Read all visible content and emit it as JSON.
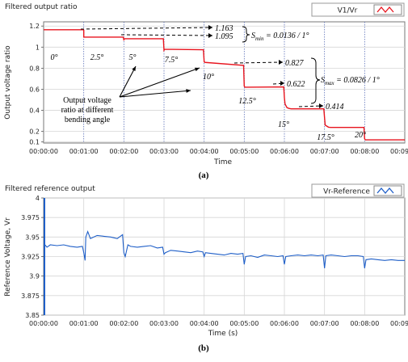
{
  "chart_data": [
    {
      "type": "line",
      "panel_title": "Filtered output ratio",
      "title": "",
      "xlabel": "Time",
      "ylabel": "Output voltage ratio",
      "x_ticks": [
        "00:00:00",
        "00:01:00",
        "00:02:00",
        "00:03:00",
        "00:04:00",
        "00:05:00",
        "00:06:00",
        "00:07:00",
        "00:08:00",
        "00:09:00"
      ],
      "y_ticks": [
        "0.1",
        "0.2",
        "0.4",
        "0.6",
        "0.8",
        "1",
        "1.2"
      ],
      "xlim_seconds": [
        0,
        540
      ],
      "ylim": [
        0.09,
        1.24
      ],
      "grid": true,
      "legend": {
        "label": "V1/Vr",
        "position": "top-right"
      },
      "series": [
        {
          "name": "V1/Vr",
          "color": "#e8141e",
          "x": [
            0,
            59,
            60,
            60,
            119,
            120,
            121,
            179,
            180,
            181,
            239,
            240,
            241,
            299,
            300,
            301,
            359,
            360,
            361,
            364,
            367,
            370,
            419,
            420,
            421,
            426,
            429,
            479,
            480,
            481,
            540
          ],
          "y": [
            1.165,
            1.165,
            1.16,
            1.095,
            1.095,
            1.07,
            1.08,
            1.08,
            0.97,
            0.98,
            0.975,
            0.86,
            0.855,
            0.827,
            0.63,
            0.62,
            0.622,
            0.52,
            0.46,
            0.425,
            0.418,
            0.414,
            0.414,
            0.33,
            0.26,
            0.24,
            0.238,
            0.238,
            0.13,
            0.12,
            0.12
          ]
        }
      ],
      "annotations": {
        "angles": [
          "0°",
          "2.5°",
          "5°",
          "7.5°",
          "10°",
          "12.5°",
          "15°",
          "17.5°",
          "20°"
        ],
        "values": [
          "1.163",
          "1.095",
          "0.827",
          "0.622",
          "0.414"
        ],
        "s_min": "S",
        "s_min_sub": "min",
        "s_min_value": " = 0.0136 / 1°",
        "s_max": "S",
        "s_max_sub": "max",
        "s_max_value": " = 0.0826 / 1°",
        "note_lines": [
          "Output voltage",
          "ratio at different",
          "bending angle"
        ]
      },
      "caption": "(a)"
    },
    {
      "type": "line",
      "panel_title": "Filtered reference output",
      "title": "",
      "xlabel": "Time (s)",
      "ylabel": "Reference Voltage, Vr",
      "x_ticks": [
        "00:00:00",
        "00:01:00",
        "00:02:00",
        "00:03:00",
        "00:04:00",
        "00:05:00",
        "00:06:00",
        "00:07:00",
        "00:08:00",
        "00:09:00"
      ],
      "y_ticks": [
        "3.85",
        "3.875",
        "3.9",
        "3.925",
        "3.95",
        "3.975",
        "4"
      ],
      "xlim_seconds": [
        0,
        540
      ],
      "ylim": [
        3.85,
        4.0
      ],
      "grid": true,
      "legend": {
        "label": "Vr-Reference",
        "position": "top-right"
      },
      "series": [
        {
          "name": "Vr-Reference",
          "color": "#1f5fc8",
          "x": [
            0,
            2,
            5,
            10,
            20,
            30,
            40,
            50,
            58,
            60,
            62,
            63,
            66,
            70,
            80,
            90,
            100,
            110,
            118,
            120,
            122,
            126,
            130,
            140,
            150,
            160,
            170,
            178,
            180,
            182,
            190,
            200,
            210,
            220,
            230,
            238,
            240,
            242,
            250,
            260,
            270,
            280,
            290,
            298,
            300,
            302,
            310,
            320,
            330,
            340,
            350,
            358,
            360,
            362,
            370,
            380,
            390,
            400,
            410,
            418,
            420,
            422,
            430,
            440,
            450,
            460,
            470,
            478,
            480,
            482,
            490,
            500,
            510,
            520,
            530,
            540
          ],
          "y": [
            3.94,
            3.94,
            3.937,
            3.94,
            3.939,
            3.94,
            3.938,
            3.937,
            3.938,
            3.93,
            3.92,
            3.95,
            3.957,
            3.948,
            3.952,
            3.951,
            3.95,
            3.948,
            3.953,
            3.93,
            3.925,
            3.94,
            3.938,
            3.937,
            3.938,
            3.939,
            3.936,
            3.937,
            3.928,
            3.93,
            3.933,
            3.932,
            3.931,
            3.93,
            3.932,
            3.931,
            3.925,
            3.93,
            3.929,
            3.928,
            3.927,
            3.929,
            3.928,
            3.929,
            3.915,
            3.925,
            3.926,
            3.924,
            3.927,
            3.926,
            3.925,
            3.926,
            3.915,
            3.925,
            3.926,
            3.927,
            3.926,
            3.927,
            3.926,
            3.927,
            3.91,
            3.926,
            3.927,
            3.926,
            3.925,
            3.926,
            3.926,
            3.925,
            3.91,
            3.921,
            3.922,
            3.921,
            3.92,
            3.921,
            3.92,
            3.92
          ]
        }
      ],
      "caption": "(b)"
    }
  ]
}
